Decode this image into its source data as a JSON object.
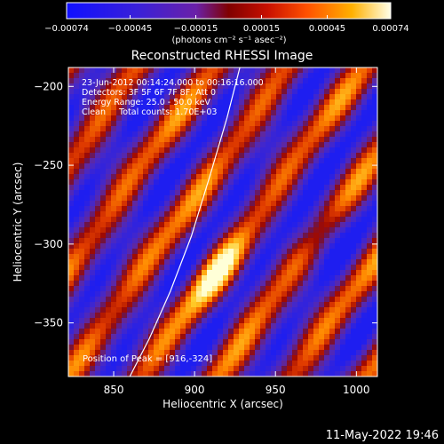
{
  "chart_data": {
    "type": "heatmap",
    "title": "Reconstructed RHESSI Image",
    "xlabel": "Heliocentric X (arcsec)",
    "ylabel": "Heliocentric Y (arcsec)",
    "xlim": [
      822,
      1013
    ],
    "ylim": [
      -384,
      -188
    ],
    "x_ticks": [
      850,
      900,
      950,
      1000
    ],
    "y_ticks": [
      -200,
      -250,
      -300,
      -350
    ],
    "x_tick_labels": [
      "850",
      "900",
      "950",
      "1000"
    ],
    "y_tick_labels": [
      "−200",
      "−250",
      "−300",
      "−350"
    ],
    "colorbar": {
      "range": [
        -0.00074,
        0.00074
      ],
      "ticks": [
        -0.00074,
        -0.00045,
        -0.00015,
        0.00015,
        0.00045,
        0.00074
      ],
      "tick_labels": [
        "−0.00074",
        "−0.00045",
        "−0.00015",
        "0.00015",
        "0.00045",
        "0.00074"
      ],
      "units": "(photons cm⁻² s⁻¹ asec⁻²)"
    },
    "annotations": [
      "23-Jun-2012 00:14:24.000 to 00:16:16.000",
      "Detectors: 3F 5F 6F 7F 8F, Att 0",
      "Energy Range: 25.0 - 50.0 keV",
      "Clean     Total counts: 1.70E+03"
    ],
    "peak": {
      "label": "Position of Peak = [916,-324]",
      "x": 916,
      "y": -324
    },
    "limb_curve": [
      [
        860,
        -384
      ],
      [
        872,
        -360
      ],
      [
        885,
        -330
      ],
      [
        898,
        -295
      ],
      [
        910,
        -255
      ],
      [
        920,
        -220
      ],
      [
        928,
        -188
      ]
    ],
    "colors": {
      "limb": "#ffffff"
    }
  },
  "footer": {
    "timestamp": "11-May-2022 19:46"
  }
}
